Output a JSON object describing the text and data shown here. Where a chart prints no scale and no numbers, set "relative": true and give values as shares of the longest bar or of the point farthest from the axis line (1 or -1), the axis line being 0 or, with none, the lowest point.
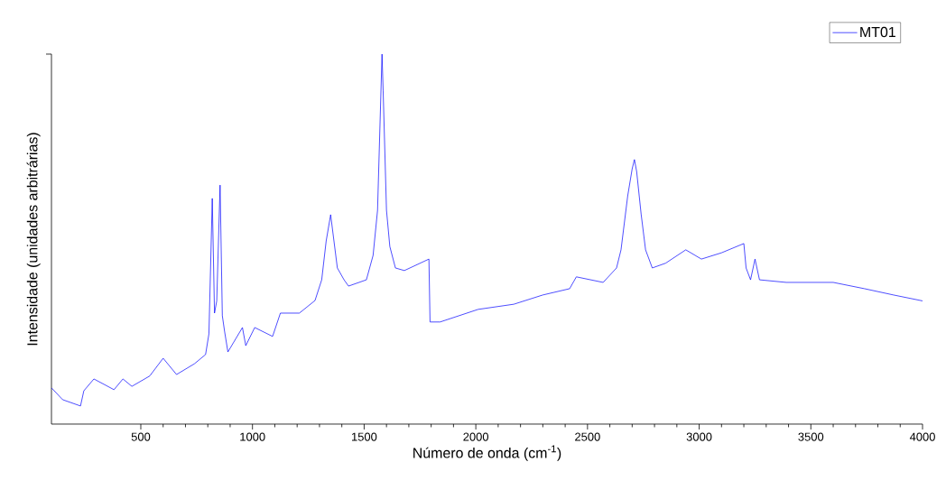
{
  "chart_data": {
    "type": "line",
    "relative": true,
    "xlabel": "Número de onda (cm$^{-1}$)",
    "ylabel": "Intensidade (unidades arbitrárias)",
    "xlim": [
      100,
      4000
    ],
    "xticks": [
      500,
      1000,
      1500,
      2000,
      2500,
      3000,
      3500,
      4000
    ],
    "grid": false,
    "legend": "top right",
    "marker": "none",
    "line_style": "solid",
    "series": [
      {
        "name": "MT01",
        "color": "#0000ff",
        "x": [
          100,
          150,
          230,
          245,
          290,
          380,
          420,
          460,
          540,
          600,
          660,
          740,
          790,
          805,
          820,
          830,
          840,
          855,
          865,
          875,
          890,
          955,
          970,
          1010,
          1090,
          1125,
          1210,
          1280,
          1310,
          1330,
          1350,
          1380,
          1410,
          1430,
          1510,
          1540,
          1560,
          1580,
          1585,
          1600,
          1615,
          1640,
          1680,
          1790,
          1795,
          1840,
          2010,
          2170,
          2300,
          2420,
          2450,
          2570,
          2630,
          2650,
          2680,
          2700,
          2710,
          2720,
          2740,
          2760,
          2790,
          2850,
          2940,
          3010,
          3100,
          3200,
          3210,
          3230,
          3250,
          3270,
          3390,
          3600,
          3740,
          3870,
          4000
        ],
        "values": [
          0.098,
          0.066,
          0.049,
          0.09,
          0.122,
          0.093,
          0.122,
          0.102,
          0.13,
          0.178,
          0.134,
          0.163,
          0.188,
          0.244,
          0.61,
          0.3,
          0.333,
          0.646,
          0.293,
          0.251,
          0.195,
          0.261,
          0.212,
          0.261,
          0.237,
          0.3,
          0.3,
          0.334,
          0.39,
          0.495,
          0.566,
          0.422,
          0.39,
          0.373,
          0.39,
          0.456,
          0.578,
          1.0,
          0.902,
          0.578,
          0.48,
          0.422,
          0.415,
          0.446,
          0.276,
          0.276,
          0.31,
          0.324,
          0.349,
          0.366,
          0.398,
          0.383,
          0.422,
          0.471,
          0.617,
          0.69,
          0.715,
          0.683,
          0.568,
          0.471,
          0.422,
          0.435,
          0.471,
          0.446,
          0.463,
          0.488,
          0.422,
          0.39,
          0.446,
          0.39,
          0.383,
          0.383,
          0.366,
          0.349,
          0.333
        ]
      }
    ]
  }
}
